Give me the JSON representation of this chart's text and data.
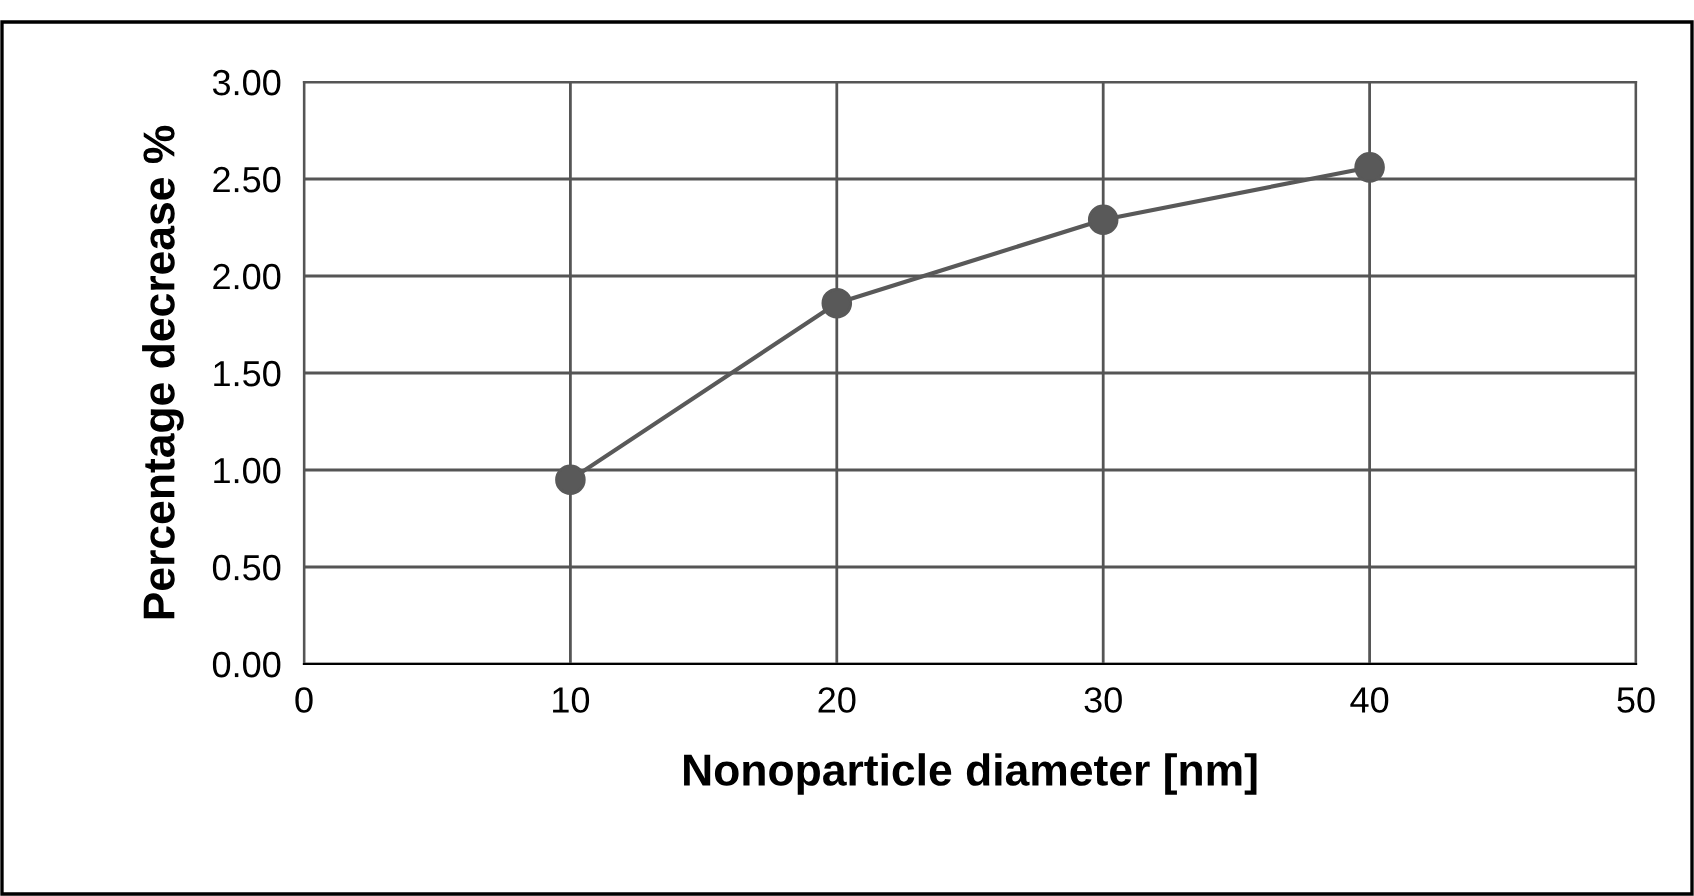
{
  "chart_data": {
    "type": "line",
    "xlabel": "Nonoparticle diameter [nm]",
    "ylabel": "Percentage decrease %",
    "x": [
      10,
      20,
      30,
      40
    ],
    "series": [
      {
        "color": "#595959",
        "values": [
          0.95,
          1.86,
          2.29,
          2.56
        ]
      }
    ],
    "xlim": [
      0,
      50
    ],
    "xticks": [
      0,
      10,
      20,
      30,
      40,
      50
    ],
    "ylim": [
      0,
      3
    ],
    "yticks": [
      {
        "value": 0,
        "label": "0.00"
      },
      {
        "value": 0.5,
        "label": "0.50"
      },
      {
        "value": 1,
        "label": "1.00"
      },
      {
        "value": 1.5,
        "label": "1.50"
      },
      {
        "value": 2,
        "label": "2.00"
      },
      {
        "value": 2.5,
        "label": "2.50"
      },
      {
        "value": 3,
        "label": "3.00"
      }
    ],
    "grid": true,
    "marker": "circle",
    "line_style": "solid"
  }
}
